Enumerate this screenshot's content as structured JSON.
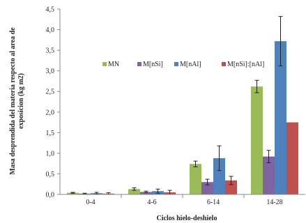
{
  "chart_data": {
    "type": "bar",
    "title": "",
    "xlabel": "Ciclos hielo-deshielo",
    "ylabel_lines": [
      "Masa desprendida del materia respecto al area de",
      "exposicion (kg m2)"
    ],
    "categories": [
      "0-4",
      "4-6",
      "6-14",
      "14-28"
    ],
    "ylim": [
      0,
      4.5
    ],
    "yticks": [
      "0,0",
      "0,5",
      "1,0",
      "1,5",
      "2,0",
      "2,5",
      "3,0",
      "3,5",
      "4,0",
      "4,5"
    ],
    "grid": false,
    "legend_position": "center-top",
    "series": [
      {
        "name": "MN",
        "color": "#9BBB59",
        "values": [
          0.04,
          0.13,
          0.74,
          2.62
        ],
        "errors": [
          0.01,
          0.03,
          0.07,
          0.15
        ]
      },
      {
        "name": "M[nSi]",
        "color": "#8064A2",
        "values": [
          0.02,
          0.06,
          0.3,
          0.92
        ],
        "errors": [
          0.01,
          0.02,
          0.07,
          0.15
        ]
      },
      {
        "name": "M[nAl]",
        "color": "#4F81BD",
        "values": [
          0.03,
          0.08,
          0.88,
          3.72
        ],
        "errors": [
          0.02,
          0.05,
          0.3,
          0.6
        ]
      },
      {
        "name": "M[nSi]:[nAl]",
        "color": "#C0504D",
        "values": [
          0.02,
          0.05,
          0.34,
          1.75
        ],
        "errors": [
          0.02,
          0.05,
          0.1,
          0.0
        ]
      }
    ]
  }
}
